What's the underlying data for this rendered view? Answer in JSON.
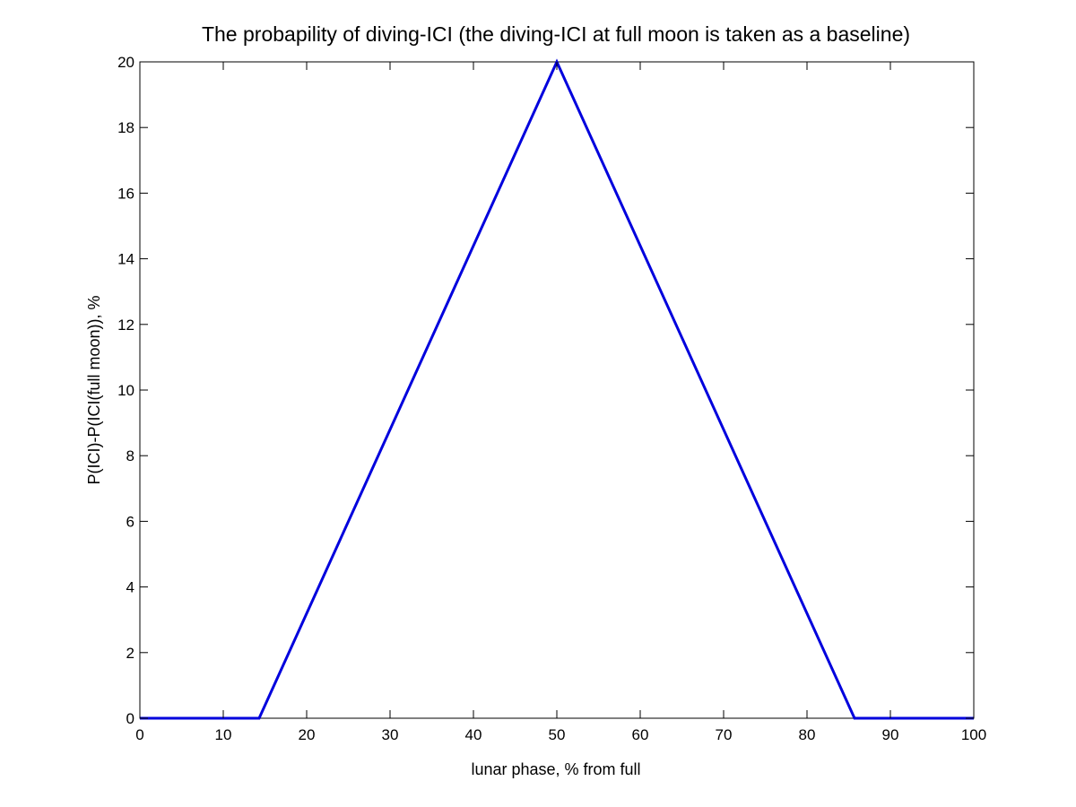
{
  "chart_data": {
    "type": "line",
    "title": "The probapility of diving-ICI (the diving-ICI at full moon is taken as a baseline)",
    "xlabel": "lunar phase, % from full",
    "ylabel": "P(ICI)-P(ICI(full moon)), %",
    "xlim": [
      0,
      100
    ],
    "ylim": [
      0,
      20
    ],
    "x_ticks": [
      0,
      10,
      20,
      30,
      40,
      50,
      60,
      70,
      80,
      90,
      100
    ],
    "y_ticks": [
      0,
      2,
      4,
      6,
      8,
      10,
      12,
      14,
      16,
      18,
      20
    ],
    "grid": false,
    "legend": "none",
    "series": [
      {
        "color": "#0000dd",
        "x": [
          0,
          14.3,
          50,
          85.7,
          100
        ],
        "y": [
          0,
          0,
          20,
          0,
          0
        ]
      }
    ]
  }
}
